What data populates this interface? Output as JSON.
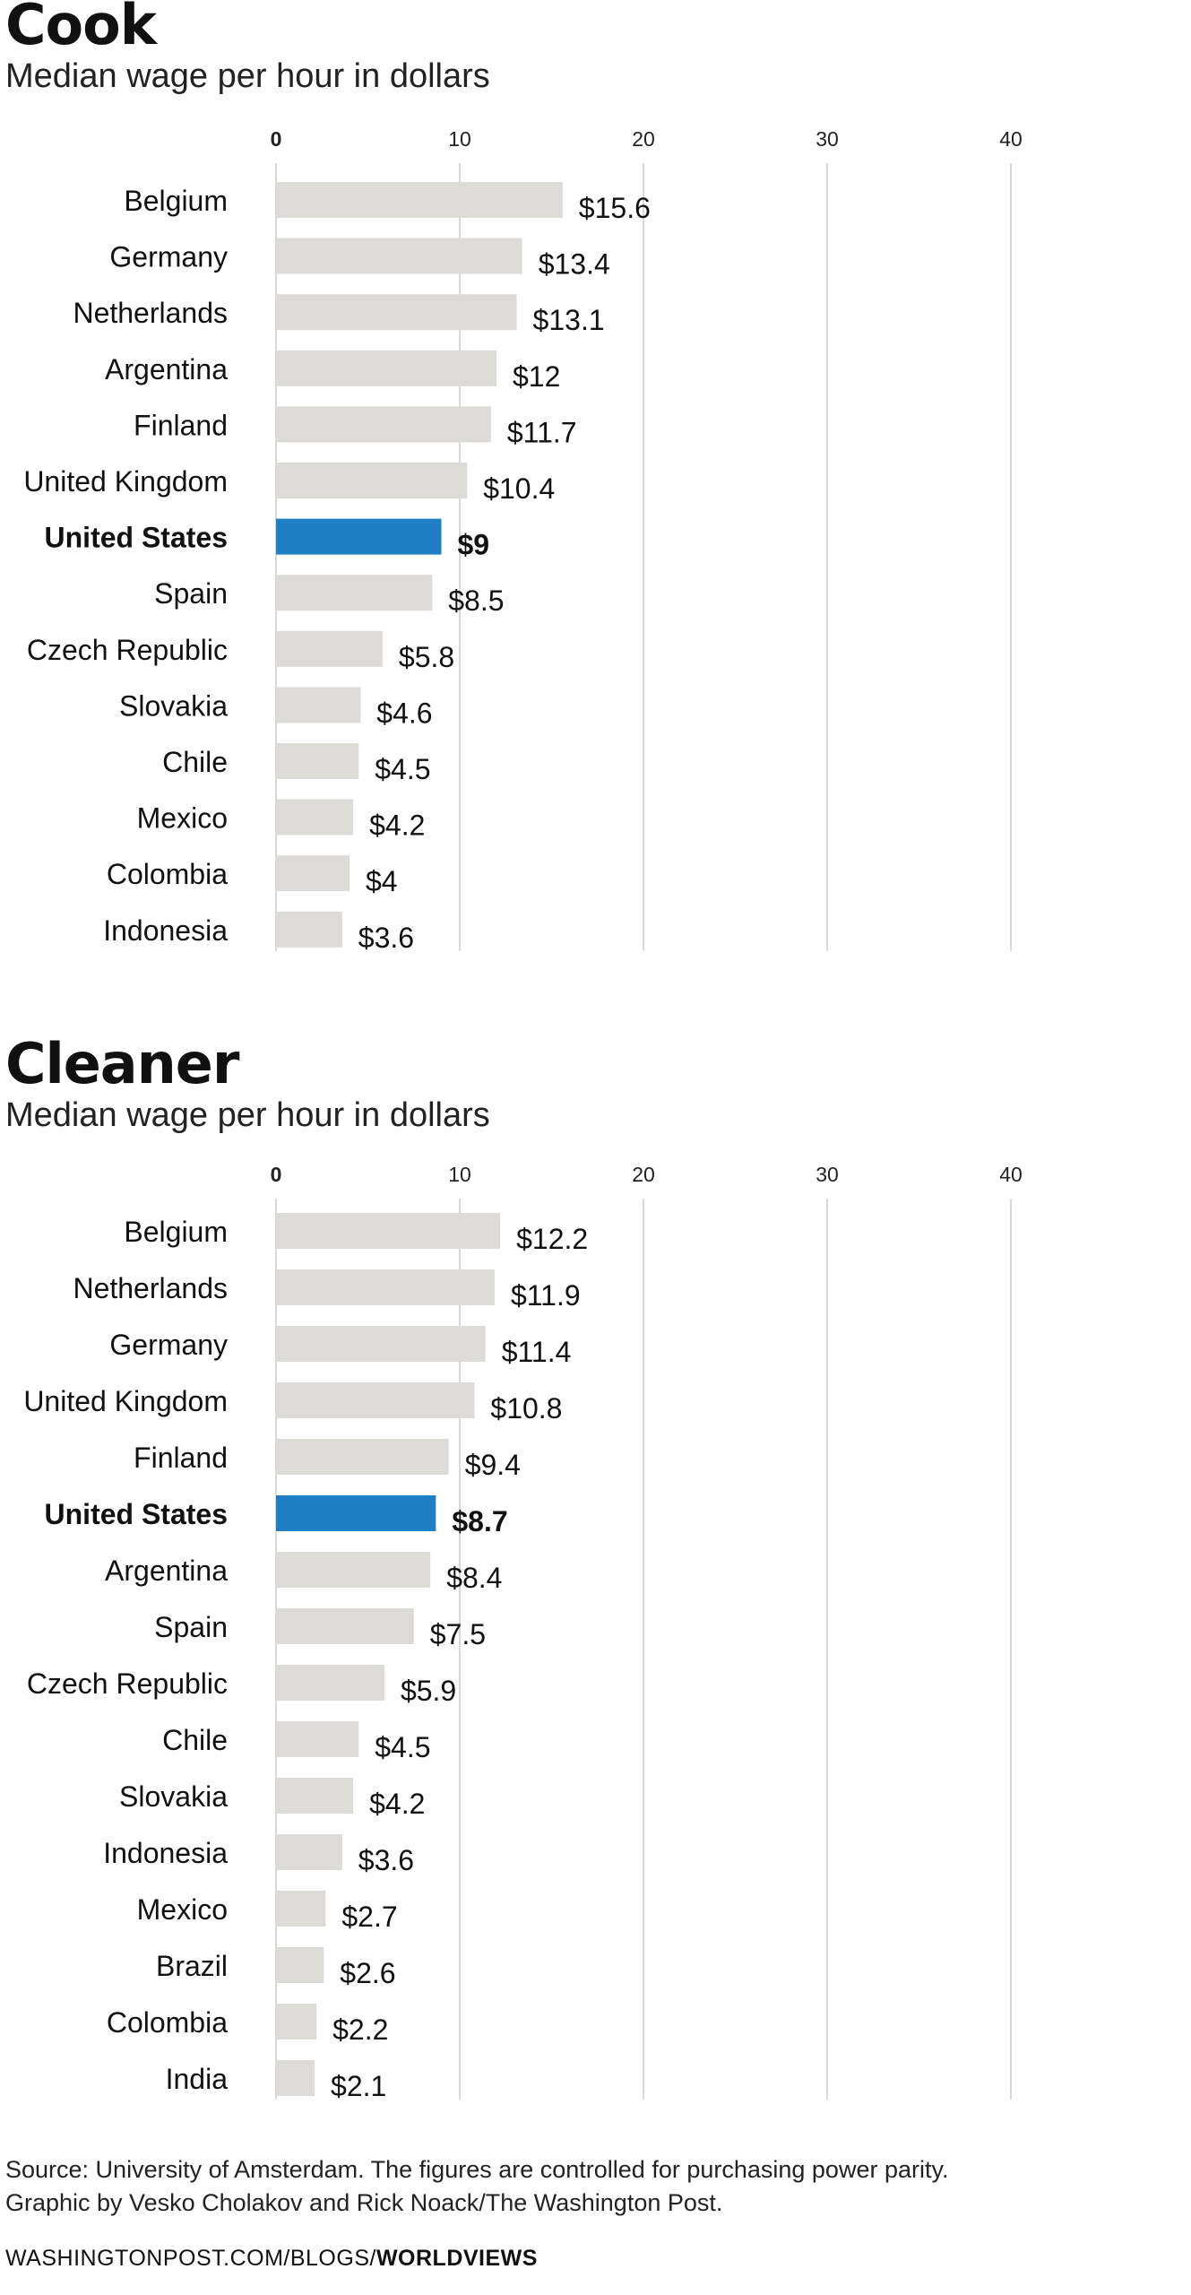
{
  "chart_data": [
    {
      "type": "bar",
      "title": "Cook",
      "subtitle": "Median wage per hour in dollars",
      "xlim": [
        0,
        40
      ],
      "x_ticks": [
        0,
        10,
        20,
        30,
        40
      ],
      "grid": true,
      "orientation": "horizontal",
      "highlight": "United States",
      "colors": {
        "bar": "#dcdbd7",
        "highlight": "#1f7fc4",
        "grid": "#d8d8d8"
      },
      "categories": [
        "Belgium",
        "Germany",
        "Netherlands",
        "Argentina",
        "Finland",
        "United Kingdom",
        "United States",
        "Spain",
        "Czech Republic",
        "Slovakia",
        "Chile",
        "Mexico",
        "Colombia",
        "Indonesia"
      ],
      "values": [
        15.6,
        13.4,
        13.1,
        12,
        11.7,
        10.4,
        9,
        8.5,
        5.8,
        4.6,
        4.5,
        4.2,
        4,
        3.6
      ],
      "value_labels": [
        "$15.6",
        "$13.4",
        "$13.1",
        "$12",
        "$11.7",
        "$10.4",
        "$9",
        "$8.5",
        "$5.8",
        "$4.6",
        "$4.5",
        "$4.2",
        "$4",
        "$3.6"
      ]
    },
    {
      "type": "bar",
      "title": "Cleaner",
      "subtitle": "Median wage per hour in dollars",
      "xlim": [
        0,
        40
      ],
      "x_ticks": [
        0,
        10,
        20,
        30,
        40
      ],
      "grid": true,
      "orientation": "horizontal",
      "highlight": "United States",
      "colors": {
        "bar": "#dcdbd7",
        "highlight": "#1f7fc4",
        "grid": "#d8d8d8"
      },
      "categories": [
        "Belgium",
        "Netherlands",
        "Germany",
        "United Kingdom",
        "Finland",
        "United States",
        "Argentina",
        "Spain",
        "Czech Republic",
        "Chile",
        "Slovakia",
        "Indonesia",
        "Mexico",
        "Brazil",
        "Colombia",
        "India"
      ],
      "values": [
        12.2,
        11.9,
        11.4,
        10.8,
        9.4,
        8.7,
        8.4,
        7.5,
        5.9,
        4.5,
        4.2,
        3.6,
        2.7,
        2.6,
        2.2,
        2.1
      ],
      "value_labels": [
        "$12.2",
        "$11.9",
        "$11.4",
        "$10.8",
        "$9.4",
        "$8.7",
        "$8.4",
        "$7.5",
        "$5.9",
        "$4.5",
        "$4.2",
        "$3.6",
        "$2.7",
        "$2.6",
        "$2.2",
        "$2.1"
      ]
    }
  ],
  "footer": {
    "source_line": "Source: University of Amsterdam. The figures are controlled for purchasing power parity.",
    "credit_line": "Graphic by Vesko Cholakov and Rick Noack/The Washington Post.",
    "url_prefix": "WASHINGTONPOST.COM/BLOGS/",
    "url_section": "WORLDVIEWS"
  }
}
